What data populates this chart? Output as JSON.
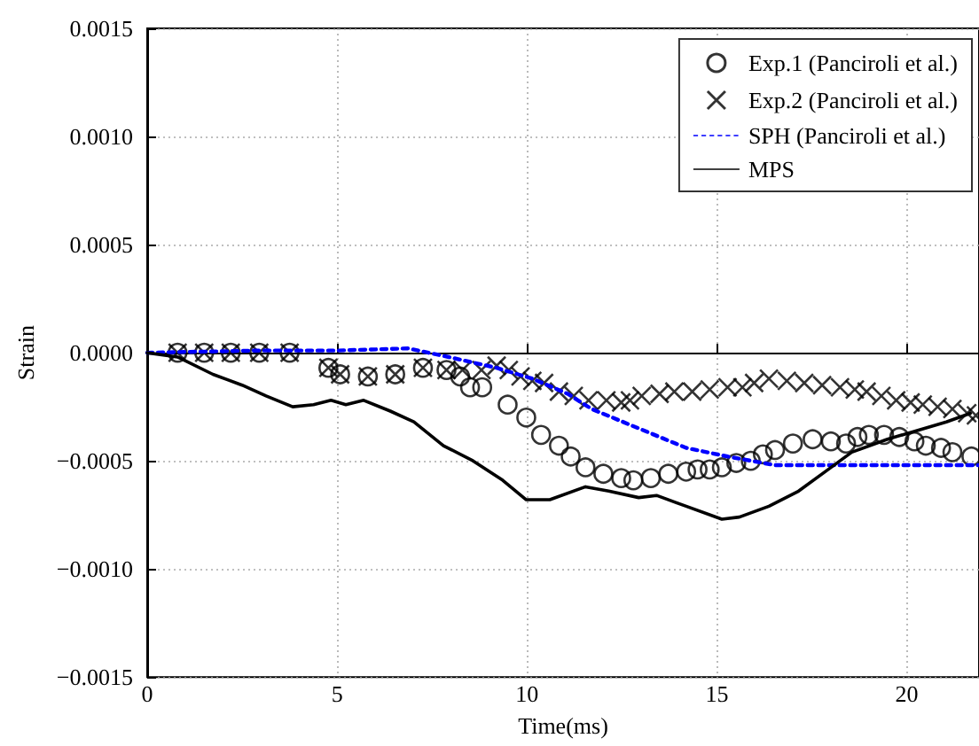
{
  "chart_data": {
    "type": "scatter",
    "xlabel": "Time(ms)",
    "ylabel": "Strain",
    "xlim": [
      0,
      21.9
    ],
    "xticks": [
      0,
      5,
      10,
      15,
      20
    ],
    "ylim": [
      -0.0015,
      0.0015
    ],
    "yticks": [
      {
        "value": -0.0015,
        "label": "−0.0015"
      },
      {
        "value": -0.001,
        "label": "−0.0010"
      },
      {
        "value": -0.0005,
        "label": "−0.0005"
      },
      {
        "value": 0,
        "label": "0.0000"
      },
      {
        "value": 0.0005,
        "label": "0.0005"
      },
      {
        "value": 0.001,
        "label": "0.0010"
      },
      {
        "value": 0.0015,
        "label": "0.0015"
      }
    ],
    "grid": true,
    "legend": "top right",
    "series": [
      {
        "name": "Exp.1 (Panciroli et al.)",
        "marker": "circle",
        "color": "#000000",
        "x": [
          0.8,
          1.5,
          2.2,
          2.95,
          3.75,
          4.77,
          5.08,
          5.81,
          6.53,
          7.26,
          7.88,
          8.24,
          8.5,
          8.82,
          9.49,
          9.98,
          10.37,
          10.84,
          11.15,
          11.54,
          12.01,
          12.48,
          12.8,
          13.26,
          13.72,
          14.19,
          14.49,
          14.81,
          15.13,
          15.51,
          15.89,
          16.21,
          16.53,
          17.0,
          17.52,
          18.0,
          18.4,
          18.7,
          19.0,
          19.4,
          19.8,
          20.2,
          20.5,
          20.9,
          21.2,
          21.7
        ],
        "values": [
          0,
          0,
          0,
          0,
          0,
          -7e-05,
          -0.0001,
          -0.00011,
          -0.0001,
          -7e-05,
          -8e-05,
          -0.00011,
          -0.00016,
          -0.00016,
          -0.00024,
          -0.0003,
          -0.00038,
          -0.00043,
          -0.00048,
          -0.00053,
          -0.00056,
          -0.00058,
          -0.00059,
          -0.00058,
          -0.00056,
          -0.00055,
          -0.00054,
          -0.00054,
          -0.00053,
          -0.00051,
          -0.0005,
          -0.00047,
          -0.00045,
          -0.00042,
          -0.0004,
          -0.00041,
          -0.00042,
          -0.00039,
          -0.00038,
          -0.00038,
          -0.00039,
          -0.00041,
          -0.00043,
          -0.00044,
          -0.00046,
          -0.00048
        ]
      },
      {
        "name": "Exp.2 (Panciroli et al.)",
        "marker": "cross",
        "color": "#000000",
        "x": [
          0.8,
          1.5,
          2.2,
          2.95,
          3.75,
          4.77,
          5.08,
          5.81,
          6.53,
          7.26,
          7.88,
          8.3,
          8.8,
          9.2,
          9.52,
          9.83,
          10.14,
          10.45,
          10.84,
          11.23,
          11.62,
          12.09,
          12.48,
          12.71,
          13.02,
          13.49,
          13.88,
          14.35,
          14.81,
          15.28,
          15.67,
          15.98,
          16.37,
          16.84,
          17.3,
          17.77,
          18.24,
          18.63,
          18.94,
          19.33,
          19.72,
          20.1,
          20.42,
          20.81,
          21.2,
          21.59,
          21.82
        ],
        "values": [
          0,
          0,
          0,
          0,
          0,
          -7e-05,
          -0.0001,
          -0.00011,
          -0.0001,
          -7e-05,
          -8e-05,
          -8e-05,
          -8e-05,
          -6e-05,
          -8e-05,
          -0.00011,
          -0.00013,
          -0.00014,
          -0.00018,
          -0.0002,
          -0.00022,
          -0.00022,
          -0.00023,
          -0.00022,
          -0.0002,
          -0.00019,
          -0.00018,
          -0.00018,
          -0.00017,
          -0.00016,
          -0.00016,
          -0.00014,
          -0.00012,
          -0.00013,
          -0.00014,
          -0.00015,
          -0.00016,
          -0.00017,
          -0.00018,
          -0.0002,
          -0.00022,
          -0.00023,
          -0.00024,
          -0.00025,
          -0.00026,
          -0.00028,
          -0.00029
        ]
      },
      {
        "name": "SPH (Panciroli et al.)",
        "type": "line",
        "marker": "none",
        "line_style": "dotted",
        "color": "#0000ff",
        "x": [
          0,
          3,
          5,
          6.87,
          7.94,
          9.2,
          10.14,
          11.07,
          11.7,
          12.94,
          14.19,
          15.28,
          16.53,
          18,
          20,
          21.9
        ],
        "values": [
          0,
          1e-05,
          1e-05,
          2e-05,
          -2e-05,
          -7e-05,
          -0.00012,
          -0.00019,
          -0.00026,
          -0.00035,
          -0.00044,
          -0.00048,
          -0.00052,
          -0.00052,
          -0.00052,
          -0.00052
        ]
      },
      {
        "name": "MPS",
        "type": "line",
        "marker": "none",
        "line_style": "solid",
        "color": "#000000",
        "x": [
          0,
          0.8,
          1.73,
          2.5,
          3.13,
          3.83,
          4.38,
          4.84,
          5.23,
          5.7,
          6.4,
          7.02,
          7.8,
          8.58,
          9.36,
          9.98,
          10.6,
          11.54,
          12.15,
          12.94,
          13.41,
          14.19,
          15.13,
          15.59,
          16.37,
          17.15,
          17.93,
          18.55,
          19.49,
          20.27,
          21.04,
          21.67
        ],
        "values": [
          0,
          -2e-05,
          -0.0001,
          -0.00015,
          -0.0002,
          -0.00025,
          -0.00024,
          -0.00022,
          -0.00024,
          -0.00022,
          -0.00027,
          -0.00032,
          -0.00043,
          -0.0005,
          -0.00059,
          -0.00068,
          -0.00068,
          -0.00062,
          -0.00064,
          -0.00067,
          -0.00066,
          -0.00071,
          -0.00077,
          -0.00076,
          -0.00071,
          -0.00064,
          -0.00054,
          -0.00046,
          -0.0004,
          -0.00036,
          -0.00032,
          -0.00028
        ]
      }
    ]
  }
}
